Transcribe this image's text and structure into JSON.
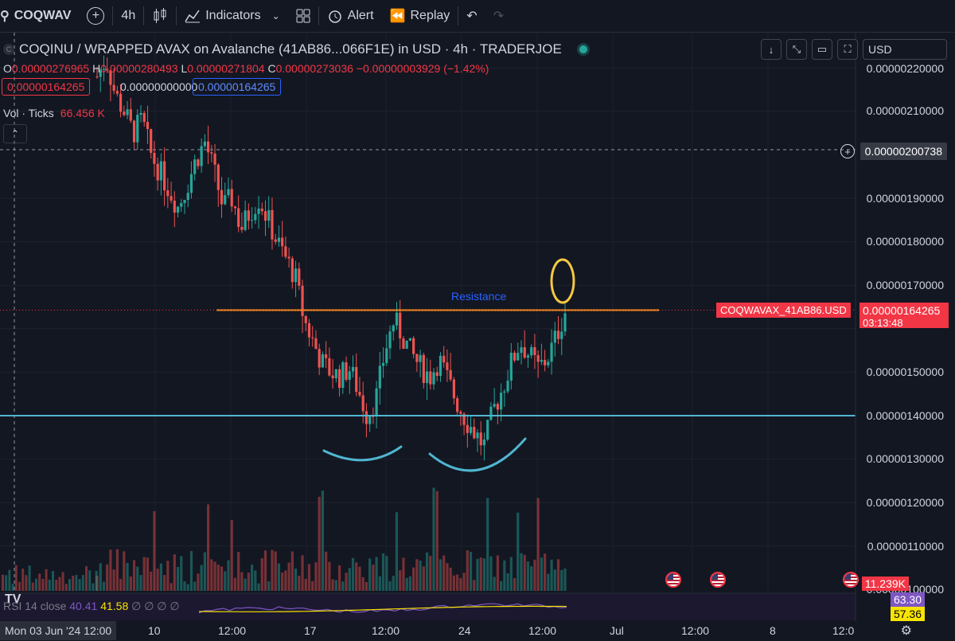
{
  "toolbar": {
    "symbol": "COQWAV",
    "interval": "4h",
    "indicators_label": "Indicators",
    "alert_label": "Alert",
    "replay_label": "Replay"
  },
  "legend": {
    "title": "COQINU / WRAPPED AVAX on Avalanche (41AB86...066F1E) in USD · 4h · TRADERJOE",
    "logo_letter": "C",
    "open_label": "O",
    "open": "0.00000276965",
    "high_label": "H",
    "high": "0.00000280493",
    "low_label": "L",
    "low": "0.00000271804",
    "close_label": "C",
    "close": "0.00000273036",
    "change": "−0.00000003929 (−1.42%)",
    "box_red": "0.00000164265",
    "box_plain": "0.00000000000",
    "box_blue": "0.00000164265",
    "vol_label": "Vol · Ticks",
    "vol_value": "66.456 K"
  },
  "currency": "USD",
  "price_axis": {
    "ticks": [
      "0.00000220000",
      "0.00000210000",
      "0.00000190000",
      "0.00000180000",
      "0.00000170000",
      "0.00000150000",
      "0.00000140000",
      "0.00000130000",
      "0.00000120000",
      "0.00000110000",
      "0.00000100000"
    ],
    "crosshair_price": "0.00000200738",
    "last_price": "0.00000164265",
    "countdown": "03:13:48",
    "pair_label": "COQWAVAX_41AB86.USD",
    "volume_label": "11.239K",
    "rsi_label": "63.30",
    "rsi_ma_label": "57.36"
  },
  "annotation": {
    "resistance": "Resistance"
  },
  "rsi_legend": {
    "name": "RSI 14 close",
    "v1": "40.41",
    "v2": "41.58",
    "extra": "∅ ∅ ∅ ∅"
  },
  "time_axis": {
    "current": "Mon 03 Jun '24   12:00",
    "ticks": [
      "10",
      "12:00",
      "17",
      "12:00",
      "24",
      "12:00",
      "Jul",
      "12:00",
      "8",
      "12:0"
    ]
  },
  "colors": {
    "up": "#26a69a",
    "down": "#ef5350",
    "resistance": "#f7931a",
    "support": "#4fb6d0",
    "circle": "#f5c842"
  },
  "chart_data": {
    "type": "candlestick",
    "price_scale": [
      1e-06,
      2.25e-06
    ],
    "support_level": 1.4e-06,
    "resistance_level": 1.64265e-06,
    "closes": [
      2.18e-06,
      2.22e-06,
      2.14e-06,
      2.1e-06,
      2.05e-06,
      2.08e-06,
      2e-06,
      1.96e-06,
      1.92e-06,
      1.88e-06,
      1.93e-06,
      1.99e-06,
      2.03e-06,
      1.96e-06,
      1.88e-06,
      1.9e-06,
      1.83e-06,
      1.87e-06,
      1.9e-06,
      1.85e-06,
      1.8e-06,
      1.76e-06,
      1.72e-06,
      1.62e-06,
      1.57e-06,
      1.52e-06,
      1.5e-06,
      1.49e-06,
      1.51e-06,
      1.46e-06,
      1.4e-06,
      1.44e-06,
      1.55e-06,
      1.62e-06,
      1.58e-06,
      1.54e-06,
      1.51e-06,
      1.49e-06,
      1.53e-06,
      1.48e-06,
      1.43e-06,
      1.39e-06,
      1.36e-06,
      1.33e-06,
      1.41e-06,
      1.46e-06,
      1.52e-06,
      1.57e-06,
      1.54e-06,
      1.51e-06,
      1.53e-06,
      1.58e-06,
      1.64e-06
    ]
  }
}
